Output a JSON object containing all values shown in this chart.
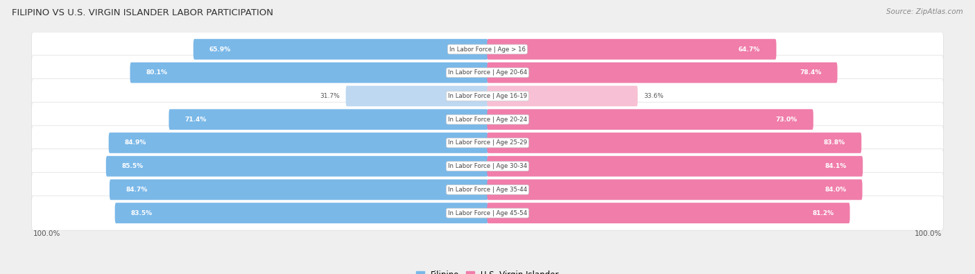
{
  "title": "FILIPINO VS U.S. VIRGIN ISLANDER LABOR PARTICIPATION",
  "source": "Source: ZipAtlas.com",
  "categories": [
    "In Labor Force | Age > 16",
    "In Labor Force | Age 20-64",
    "In Labor Force | Age 16-19",
    "In Labor Force | Age 20-24",
    "In Labor Force | Age 25-29",
    "In Labor Force | Age 30-34",
    "In Labor Force | Age 35-44",
    "In Labor Force | Age 45-54"
  ],
  "filipino_values": [
    65.9,
    80.1,
    31.7,
    71.4,
    84.9,
    85.5,
    84.7,
    83.5
  ],
  "usvi_values": [
    64.7,
    78.4,
    33.6,
    73.0,
    83.8,
    84.1,
    84.0,
    81.2
  ],
  "filipino_color": "#7AB8E8",
  "filipino_color_light": "#BDD8F0",
  "usvi_color": "#F07DAA",
  "usvi_color_light": "#F8C0D4",
  "bg_color": "#efefef",
  "row_bg": "#ffffff",
  "axis_max": 100.0,
  "legend_labels": [
    "Filipino",
    "U.S. Virgin Islander"
  ]
}
